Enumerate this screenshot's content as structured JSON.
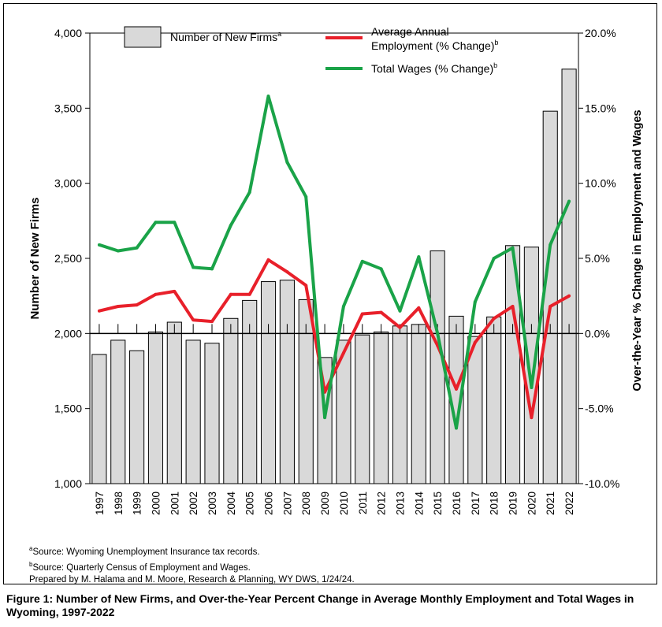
{
  "chart_data": {
    "type": "bar",
    "categories": [
      "1997",
      "1998",
      "1999",
      "2000",
      "2001",
      "2002",
      "2003",
      "2004",
      "2005",
      "2006",
      "2007",
      "2008",
      "2009",
      "2010",
      "2011",
      "2012",
      "2013",
      "2014",
      "2015",
      "2016",
      "2017",
      "2018",
      "2019",
      "2020",
      "2021",
      "2022"
    ],
    "series": [
      {
        "name": "Number of New Firms",
        "name_sup": "a",
        "type": "bar",
        "axis": "left",
        "color": "#d9d9d9",
        "values": [
          1860,
          1955,
          1885,
          2010,
          2075,
          1955,
          1935,
          2100,
          2220,
          2345,
          2355,
          2225,
          1840,
          1955,
          1990,
          2010,
          2050,
          2060,
          2550,
          2115,
          1980,
          2110,
          2585,
          2575,
          3480,
          3760
        ]
      },
      {
        "name": "Average Annual",
        "name2": "Employment (% Change)",
        "name_sup": "b",
        "type": "line",
        "axis": "right",
        "color": "#e8202a",
        "values": [
          1.5,
          1.8,
          1.9,
          2.6,
          2.8,
          0.9,
          0.8,
          2.6,
          2.6,
          4.9,
          4.1,
          3.2,
          -3.9,
          -1.3,
          1.3,
          1.4,
          0.4,
          1.7,
          -0.8,
          -3.7,
          -0.6,
          1.0,
          1.8,
          -5.6,
          1.8,
          2.5
        ]
      },
      {
        "name": "Total Wages (% Change)",
        "name_sup": "b",
        "type": "line",
        "axis": "right",
        "color": "#1aa348",
        "values": [
          5.9,
          5.5,
          5.7,
          7.4,
          7.4,
          4.4,
          4.3,
          7.2,
          9.4,
          15.8,
          11.4,
          9.1,
          -5.6,
          1.8,
          4.8,
          4.3,
          1.5,
          5.1,
          0.0,
          -6.3,
          2.1,
          5.0,
          5.7,
          -3.6,
          5.9,
          8.8
        ]
      }
    ],
    "y_left": {
      "label": "Number of New Firms",
      "min": 1000,
      "max": 4000,
      "ticks": [
        "1,000",
        "1,500",
        "2,000",
        "2,500",
        "3,000",
        "3,500",
        "4,000"
      ],
      "tick_values": [
        1000,
        1500,
        2000,
        2500,
        3000,
        3500,
        4000
      ]
    },
    "y_right": {
      "label": "Over-the-Year % Change in Employment and Wages",
      "min": -10,
      "max": 20,
      "ticks": [
        "-10.0%",
        "-5.0%",
        "0.0%",
        "5.0%",
        "10.0%",
        "15.0%",
        "20.0%"
      ],
      "tick_values": [
        -10,
        -5,
        0,
        5,
        10,
        15,
        20
      ]
    },
    "grid": false,
    "legend": "top"
  },
  "notes": [
    {
      "sup": "a",
      "text": "Source: Wyoming Unemployment Insurance tax records."
    },
    {
      "sup": "b",
      "text": "Source: Quarterly Census of Employment and Wages."
    },
    {
      "sup": "",
      "text": "Prepared by M. Halama and M. Moore, Research & Planning, WY DWS, 1/24/24."
    }
  ],
  "caption": "Figure 1: Number of New Firms, and Over-the-Year Percent Change in Average Monthly Employment and Total Wages in Wyoming, 1997-2022"
}
